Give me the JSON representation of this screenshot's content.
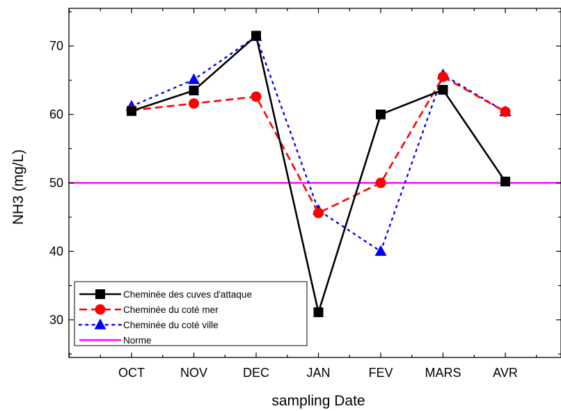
{
  "chart_data": {
    "type": "line",
    "xlabel": "sampling Date",
    "ylabel": "NH3 (mg/L)",
    "categories": [
      "OCT",
      "NOV",
      "DEC",
      "JAN",
      "FEV",
      "MARS",
      "AVR"
    ],
    "ylim": [
      24.5,
      75.5
    ],
    "yticks": [
      30,
      40,
      50,
      60,
      70
    ],
    "grid": false,
    "legend_position": "bottom-left",
    "series": [
      {
        "name": "Cheminée des cuves d'attaque",
        "color": "#000000",
        "line_style": "solid",
        "marker": "square",
        "values": [
          60.5,
          63.5,
          71.5,
          31.1,
          60.0,
          63.6,
          50.2
        ]
      },
      {
        "name": "Cheminée du coté mer",
        "color": "#ff0000",
        "line_style": "dash",
        "marker": "circle",
        "values": [
          60.6,
          61.6,
          62.6,
          45.6,
          50.0,
          65.5,
          60.4
        ]
      },
      {
        "name": "Cheminée du coté ville",
        "color": "#0000ff",
        "line_style": "dot",
        "marker": "triangle",
        "values": [
          61.2,
          65.1,
          71.4,
          46.0,
          40.0,
          65.8,
          60.4
        ]
      }
    ],
    "reference_line": {
      "name": "Norme",
      "color": "#ff00ff",
      "value": 50
    }
  }
}
